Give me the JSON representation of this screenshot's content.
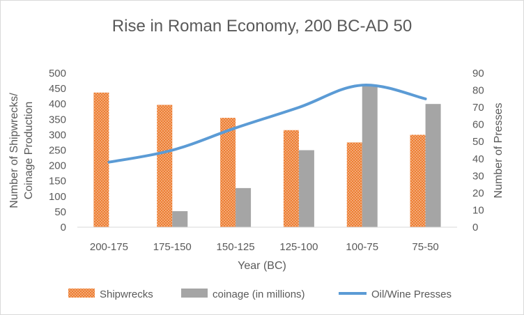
{
  "chart_data": {
    "type": "bar",
    "title": "Rise in Roman Economy, 200 BC-AD 50",
    "xlabel": "Year (BC)",
    "ylabel_line1": "Number of Shipwrecks/",
    "ylabel_line2": "Coinage Production",
    "y2label": "Number of Presses",
    "categories": [
      "200-175",
      "175-150",
      "150-125",
      "125-100",
      "100-75",
      "75-50"
    ],
    "ylim": [
      0,
      500
    ],
    "yticks": [
      0,
      50,
      100,
      150,
      200,
      250,
      300,
      350,
      400,
      450,
      500
    ],
    "y2lim": [
      0,
      90
    ],
    "y2ticks": [
      0,
      10,
      20,
      30,
      40,
      50,
      60,
      70,
      80,
      90
    ],
    "grid": false,
    "legend_position": "bottom",
    "series": [
      {
        "name": "Shipwrecks",
        "type": "bar",
        "axis": "left",
        "color": "#ed7d31",
        "pattern": "dotted",
        "values": [
          437,
          397,
          355,
          315,
          275,
          300
        ]
      },
      {
        "name": "coinage (in millions)",
        "type": "bar",
        "axis": "left",
        "color": "#a5a5a5",
        "values": [
          0,
          52,
          127,
          250,
          460,
          400
        ]
      },
      {
        "name": "Oil/Wine Presses",
        "type": "line",
        "axis": "right",
        "color": "#5b9bd5",
        "values": [
          38,
          45,
          58,
          70,
          83,
          75
        ]
      }
    ]
  }
}
